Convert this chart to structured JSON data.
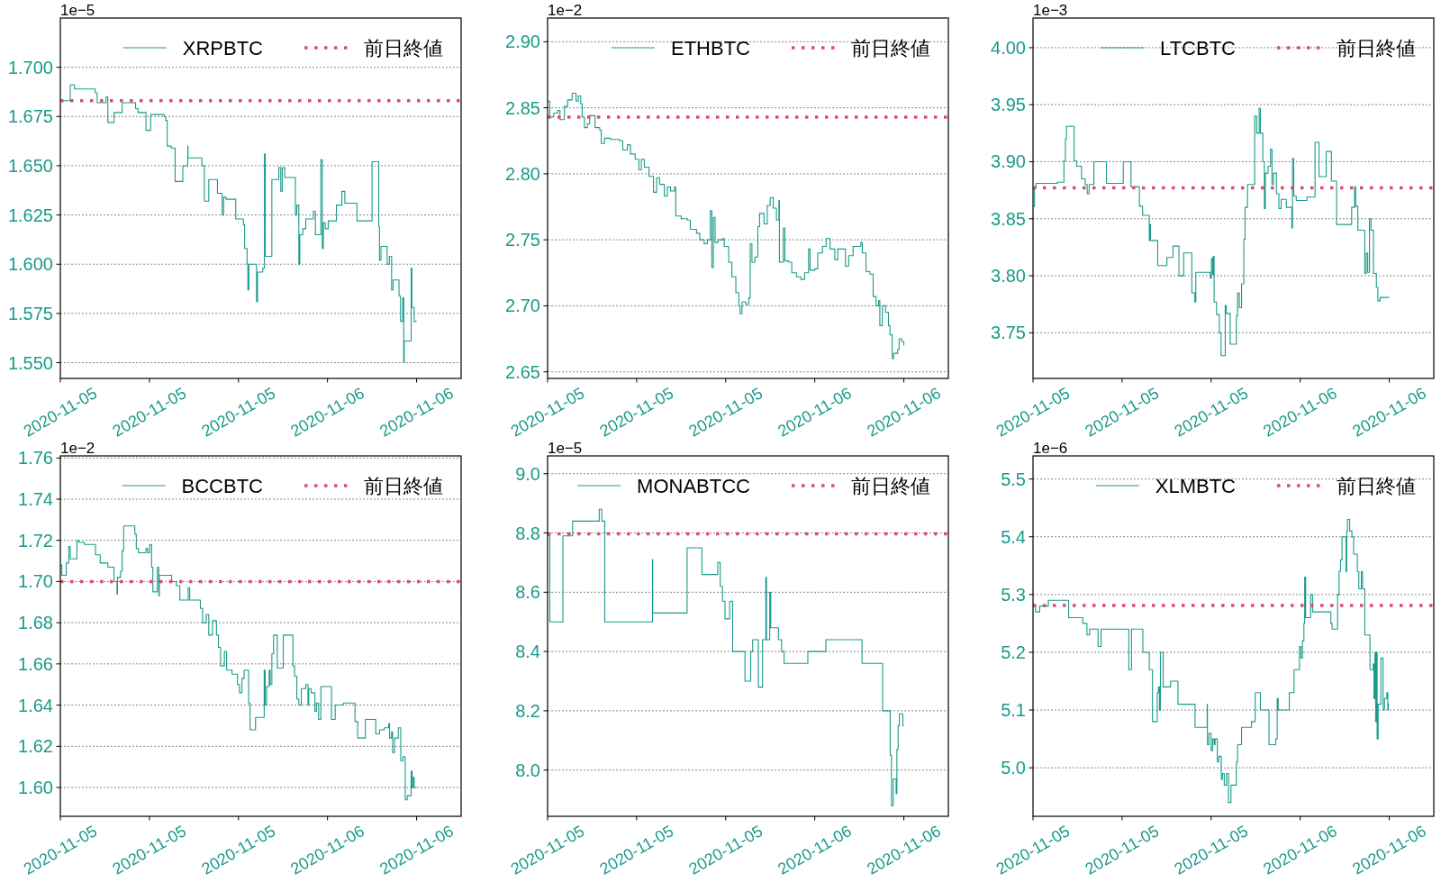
{
  "chart_data": [
    {
      "type": "step",
      "ylabel": "1e−5",
      "xlim": [
        "2020-11-05T09:00",
        "2020-11-06T12:00"
      ],
      "xticks": [
        {
          "value": "2020-11-05T09:00",
          "label": "2020-11-05"
        },
        {
          "value": "2020-11-05T15:00",
          "label": "2020-11-05"
        },
        {
          "value": "2020-11-05T21:00",
          "label": "2020-11-05"
        },
        {
          "value": "2020-11-06T03:00",
          "label": "2020-11-06"
        },
        {
          "value": "2020-11-06T09:00",
          "label": "2020-11-06"
        }
      ],
      "ylim": [
        1.542,
        1.725
      ],
      "yticks": [
        {
          "value": 1.55,
          "label": "1.550"
        },
        {
          "value": 1.575,
          "label": "1.575"
        },
        {
          "value": 1.6,
          "label": "1.600"
        },
        {
          "value": 1.625,
          "label": "1.625"
        },
        {
          "value": 1.65,
          "label": "1.650"
        },
        {
          "value": 1.675,
          "label": "1.675"
        },
        {
          "value": 1.7,
          "label": "1.700"
        }
      ],
      "grid": "y",
      "legend": "top right",
      "series": [
        {
          "name": "XRPBTC",
          "color": "#1a9a8a",
          "x": [
            "2020-11-05T09:00",
            "2020-11-05T09:40",
            "2020-11-05T09:57",
            "2020-11-05T11:21",
            "2020-11-05T11:29",
            "2020-11-05T12:05",
            "2020-11-05T12:12",
            "2020-11-05T12:37",
            "2020-11-05T13:10",
            "2020-11-05T14:04",
            "2020-11-05T14:14",
            "2020-11-05T14:46",
            "2020-11-05T15:05",
            "2020-11-05T16:00",
            "2020-11-05T16:06",
            "2020-11-05T16:12",
            "2020-11-05T16:28",
            "2020-11-05T16:44",
            "2020-11-05T17:15",
            "2020-11-05T17:35",
            "2020-11-05T17:36",
            "2020-11-05T18:32",
            "2020-11-05T18:42",
            "2020-11-05T19:00",
            "2020-11-05T19:35",
            "2020-11-05T19:54",
            "2020-11-05T20:00",
            "2020-11-05T20:10",
            "2020-11-05T20:49",
            "2020-11-05T21:20",
            "2020-11-05T21:25",
            "2020-11-05T21:35",
            "2020-11-05T21:38",
            "2020-11-05T21:42",
            "2020-11-05T22:13",
            "2020-11-05T22:17",
            "2020-11-05T22:38",
            "2020-11-05T22:45",
            "2020-11-05T22:48",
            "2020-11-05T23:15",
            "2020-11-05T23:43",
            "2020-11-05T23:51",
            "2020-11-05T23:57",
            "2020-11-06T00:07",
            "2020-11-06T00:50",
            "2020-11-06T00:56",
            "2020-11-06T01:04",
            "2020-11-06T01:08",
            "2020-11-06T01:20",
            "2020-11-06T01:32",
            "2020-11-06T02:03",
            "2020-11-06T02:11",
            "2020-11-06T02:33",
            "2020-11-06T02:39",
            "2020-11-06T02:43",
            "2020-11-06T02:51",
            "2020-11-06T03:03",
            "2020-11-06T03:36",
            "2020-11-06T03:58",
            "2020-11-06T04:10",
            "2020-11-06T04:59",
            "2020-11-06T06:00",
            "2020-11-06T06:27",
            "2020-11-06T06:30",
            "2020-11-06T06:36",
            "2020-11-06T07:01",
            "2020-11-06T07:10",
            "2020-11-06T07:19",
            "2020-11-06T07:25",
            "2020-11-06T07:49",
            "2020-11-06T07:55",
            "2020-11-06T08:04",
            "2020-11-06T08:08",
            "2020-11-06T08:10",
            "2020-11-06T08:38",
            "2020-11-06T08:41",
            "2020-11-06T08:50",
            "2020-11-06T09:00"
          ],
          "values": [
            1.683,
            1.691,
            1.689,
            1.687,
            1.682,
            1.685,
            1.672,
            1.677,
            1.682,
            1.679,
            1.677,
            1.668,
            1.676,
            1.675,
            1.673,
            1.66,
            1.659,
            1.642,
            1.65,
            1.66,
            1.654,
            1.65,
            1.632,
            1.643,
            1.636,
            1.625,
            1.634,
            1.633,
            1.623,
            1.62,
            1.608,
            1.6,
            1.587,
            1.6,
            1.581,
            1.596,
            1.598,
            1.656,
            1.604,
            1.643,
            1.649,
            1.637,
            1.649,
            1.644,
            1.625,
            1.63,
            1.6,
            1.615,
            1.618,
            1.623,
            1.627,
            1.615,
            1.653,
            1.608,
            1.621,
            1.618,
            1.622,
            1.63,
            1.637,
            1.631,
            1.622,
            1.652,
            1.619,
            1.602,
            1.609,
            1.6,
            1.604,
            1.587,
            1.592,
            1.584,
            1.571,
            1.583,
            1.55,
            1.561,
            1.598,
            1.578,
            1.571,
            1.571
          ]
        }
      ],
      "ref_lines": [
        {
          "axis": "y",
          "value": 1.683,
          "label": "前日終値",
          "color": "#dc4c72",
          "line_style": "dotted"
        }
      ]
    },
    {
      "type": "step",
      "ylabel": "1e−2",
      "xlim": [
        "2020-11-05T09:00",
        "2020-11-06T12:00"
      ],
      "xticks": [
        {
          "value": "2020-11-05T09:00",
          "label": "2020-11-05"
        },
        {
          "value": "2020-11-05T15:00",
          "label": "2020-11-05"
        },
        {
          "value": "2020-11-05T21:00",
          "label": "2020-11-05"
        },
        {
          "value": "2020-11-06T03:00",
          "label": "2020-11-06"
        },
        {
          "value": "2020-11-06T09:00",
          "label": "2020-11-06"
        }
      ],
      "ylim": [
        2.645,
        2.918
      ],
      "yticks": [
        {
          "value": 2.65,
          "label": "2.65"
        },
        {
          "value": 2.7,
          "label": "2.70"
        },
        {
          "value": 2.75,
          "label": "2.75"
        },
        {
          "value": 2.8,
          "label": "2.80"
        },
        {
          "value": 2.85,
          "label": "2.85"
        },
        {
          "value": 2.9,
          "label": "2.90"
        }
      ],
      "grid": "y",
      "legend": "top right",
      "series": [
        {
          "name": "ETHBTC",
          "color": "#1a9a8a",
          "x": [
            "2020-11-05T09:00",
            "2020-11-05T09:09",
            "2020-11-05T09:25",
            "2020-11-05T09:41",
            "2020-11-05T09:50",
            "2020-11-05T10:08",
            "2020-11-05T10:21",
            "2020-11-05T10:39",
            "2020-11-05T10:55",
            "2020-11-05T11:04",
            "2020-11-05T11:14",
            "2020-11-05T11:20",
            "2020-11-05T11:29",
            "2020-11-05T11:41",
            "2020-11-05T11:50",
            "2020-11-05T12:12",
            "2020-11-05T12:31",
            "2020-11-05T12:37",
            "2020-11-05T12:50",
            "2020-11-05T13:14",
            "2020-11-05T13:52",
            "2020-11-05T14:04",
            "2020-11-05T14:23",
            "2020-11-05T14:35",
            "2020-11-05T14:54",
            "2020-11-05T15:09",
            "2020-11-05T15:19",
            "2020-11-05T15:31",
            "2020-11-05T15:50",
            "2020-11-05T16:08",
            "2020-11-05T16:21",
            "2020-11-05T16:33",
            "2020-11-05T16:52",
            "2020-11-05T17:04",
            "2020-11-05T17:17",
            "2020-11-05T17:33",
            "2020-11-05T17:38",
            "2020-11-05T18:00",
            "2020-11-05T18:25",
            "2020-11-05T18:37",
            "2020-11-05T19:02",
            "2020-11-05T19:15",
            "2020-11-05T19:33",
            "2020-11-05T19:46",
            "2020-11-05T19:58",
            "2020-11-05T20:04",
            "2020-11-05T20:10",
            "2020-11-05T20:17",
            "2020-11-05T20:29",
            "2020-11-05T20:48",
            "2020-11-05T20:54",
            "2020-11-05T21:12",
            "2020-11-05T21:25",
            "2020-11-05T21:41",
            "2020-11-05T21:53",
            "2020-11-05T21:58",
            "2020-11-05T22:06",
            "2020-11-05T22:21",
            "2020-11-05T22:33",
            "2020-11-05T22:39",
            "2020-11-05T22:46",
            "2020-11-05T22:58",
            "2020-11-05T23:10",
            "2020-11-05T23:17",
            "2020-11-05T23:35",
            "2020-11-05T23:48",
            "2020-11-06T00:00",
            "2020-11-06T00:12",
            "2020-11-06T00:25",
            "2020-11-06T00:35",
            "2020-11-06T00:37",
            "2020-11-06T00:53",
            "2020-11-06T00:59",
            "2020-11-06T01:15",
            "2020-11-06T01:27",
            "2020-11-06T01:46",
            "2020-11-06T02:04",
            "2020-11-06T02:19",
            "2020-11-06T02:35",
            "2020-11-06T02:41",
            "2020-11-06T03:00",
            "2020-11-06T03:12",
            "2020-11-06T03:31",
            "2020-11-06T03:46",
            "2020-11-06T04:02",
            "2020-11-06T04:21",
            "2020-11-06T04:33",
            "2020-11-06T05:04",
            "2020-11-06T05:17",
            "2020-11-06T05:35",
            "2020-11-06T06:06",
            "2020-11-06T06:12",
            "2020-11-06T06:27",
            "2020-11-06T06:43",
            "2020-11-06T06:56",
            "2020-11-06T07:08",
            "2020-11-06T07:18",
            "2020-11-06T07:23",
            "2020-11-06T07:33",
            "2020-11-06T07:46",
            "2020-11-06T07:58",
            "2020-11-06T08:04",
            "2020-11-06T08:13",
            "2020-11-06T08:19",
            "2020-11-06T08:35",
            "2020-11-06T08:41",
            "2020-11-06T08:51",
            "2020-11-06T09:00"
          ],
          "values": [
            2.855,
            2.843,
            2.846,
            2.848,
            2.841,
            2.851,
            2.856,
            2.861,
            2.855,
            2.859,
            2.853,
            2.843,
            2.835,
            2.838,
            2.844,
            2.835,
            2.833,
            2.823,
            2.827,
            2.826,
            2.825,
            2.818,
            2.822,
            2.815,
            2.811,
            2.803,
            2.811,
            2.805,
            2.798,
            2.786,
            2.797,
            2.792,
            2.783,
            2.79,
            2.787,
            2.79,
            2.768,
            2.766,
            2.765,
            2.758,
            2.755,
            2.75,
            2.747,
            2.75,
            2.772,
            2.729,
            2.767,
            2.748,
            2.75,
            2.751,
            2.745,
            2.733,
            2.722,
            2.71,
            2.7,
            2.694,
            2.703,
            2.701,
            2.706,
            2.747,
            2.733,
            2.737,
            2.76,
            2.77,
            2.762,
            2.776,
            2.782,
            2.774,
            2.765,
            2.78,
            2.733,
            2.759,
            2.734,
            2.733,
            2.725,
            2.722,
            2.72,
            2.725,
            2.743,
            2.727,
            2.728,
            2.74,
            2.745,
            2.751,
            2.743,
            2.735,
            2.743,
            2.73,
            2.738,
            2.745,
            2.748,
            2.74,
            2.726,
            2.724,
            2.707,
            2.7,
            2.704,
            2.685,
            2.7,
            2.695,
            2.685,
            2.678,
            2.66,
            2.664,
            2.667,
            2.675,
            2.673,
            2.67
          ]
        }
      ],
      "ref_lines": [
        {
          "axis": "y",
          "value": 2.843,
          "label": "前日終値",
          "color": "#dc4c72",
          "line_style": "dotted"
        }
      ]
    },
    {
      "type": "step",
      "ylabel": "1e−3",
      "xlim": [
        "2020-11-05T09:00",
        "2020-11-06T12:00"
      ],
      "xticks": [
        {
          "value": "2020-11-05T09:00",
          "label": "2020-11-05"
        },
        {
          "value": "2020-11-05T15:00",
          "label": "2020-11-05"
        },
        {
          "value": "2020-11-05T21:00",
          "label": "2020-11-05"
        },
        {
          "value": "2020-11-06T03:00",
          "label": "2020-11-06"
        },
        {
          "value": "2020-11-06T09:00",
          "label": "2020-11-06"
        }
      ],
      "ylim": [
        3.71,
        4.026
      ],
      "yticks": [
        {
          "value": 3.75,
          "label": "3.75"
        },
        {
          "value": 3.8,
          "label": "3.80"
        },
        {
          "value": 3.85,
          "label": "3.85"
        },
        {
          "value": 3.9,
          "label": "3.90"
        },
        {
          "value": 3.95,
          "label": "3.95"
        },
        {
          "value": 4.0,
          "label": "4.00"
        }
      ],
      "grid": "y",
      "legend": "top right",
      "series": [
        {
          "name": "LTCBTC",
          "color": "#1a9a8a",
          "x": [
            "2020-11-05T09:00",
            "2020-11-05T09:06",
            "2020-11-05T09:12",
            "2020-11-05T10:38",
            "2020-11-05T11:05",
            "2020-11-05T11:11",
            "2020-11-05T11:15",
            "2020-11-05T11:46",
            "2020-11-05T11:56",
            "2020-11-05T12:16",
            "2020-11-05T12:31",
            "2020-11-05T12:39",
            "2020-11-05T12:47",
            "2020-11-05T13:06",
            "2020-11-05T13:57",
            "2020-11-05T15:05",
            "2020-11-05T15:36",
            "2020-11-05T16:10",
            "2020-11-05T16:23",
            "2020-11-05T16:50",
            "2020-11-05T16:52",
            "2020-11-05T16:55",
            "2020-11-05T17:24",
            "2020-11-05T18:01",
            "2020-11-05T18:26",
            "2020-11-05T18:50",
            "2020-11-05T19:09",
            "2020-11-05T19:42",
            "2020-11-05T19:54",
            "2020-11-05T19:58",
            "2020-11-05T20:56",
            "2020-11-05T21:01",
            "2020-11-05T21:06",
            "2020-11-05T21:08",
            "2020-11-05T21:12",
            "2020-11-05T21:22",
            "2020-11-05T21:33",
            "2020-11-05T21:40",
            "2020-11-05T21:57",
            "2020-11-05T22:01",
            "2020-11-05T22:17",
            "2020-11-05T22:42",
            "2020-11-05T22:47",
            "2020-11-05T22:54",
            "2020-11-05T23:03",
            "2020-11-05T23:12",
            "2020-11-05T23:17",
            "2020-11-05T23:27",
            "2020-11-05T23:56",
            "2020-11-06T00:04",
            "2020-11-06T00:14",
            "2020-11-06T00:19",
            "2020-11-06T00:29",
            "2020-11-06T00:35",
            "2020-11-06T00:39",
            "2020-11-06T00:50",
            "2020-11-06T01:00",
            "2020-11-06T01:06",
            "2020-11-06T01:12",
            "2020-11-06T01:24",
            "2020-11-06T01:34",
            "2020-11-06T01:43",
            "2020-11-06T02:04",
            "2020-11-06T02:26",
            "2020-11-06T02:29",
            "2020-11-06T02:34",
            "2020-11-06T02:44",
            "2020-11-06T03:27",
            "2020-11-06T04:00",
            "2020-11-06T04:16",
            "2020-11-06T04:45",
            "2020-11-06T05:06",
            "2020-11-06T05:27",
            "2020-11-06T06:28",
            "2020-11-06T06:40",
            "2020-11-06T06:44",
            "2020-11-06T06:53",
            "2020-11-06T07:21",
            "2020-11-06T07:27",
            "2020-11-06T07:33",
            "2020-11-06T07:40",
            "2020-11-06T07:46",
            "2020-11-06T07:56",
            "2020-11-06T08:08",
            "2020-11-06T08:14",
            "2020-11-06T08:23",
            "2020-11-06T09:00"
          ],
          "values": [
            3.861,
            3.878,
            3.881,
            3.882,
            3.901,
            3.92,
            3.931,
            3.901,
            3.896,
            3.885,
            3.88,
            3.872,
            3.88,
            3.9,
            3.881,
            3.9,
            3.878,
            3.861,
            3.853,
            3.831,
            3.845,
            3.831,
            3.809,
            3.816,
            3.826,
            3.8,
            3.82,
            3.785,
            3.777,
            3.803,
            3.798,
            3.815,
            3.801,
            3.817,
            3.777,
            3.766,
            3.75,
            3.73,
            3.774,
            3.767,
            3.74,
            3.765,
            3.785,
            3.772,
            3.793,
            3.832,
            3.86,
            3.88,
            3.94,
            3.925,
            3.947,
            3.925,
            3.9,
            3.859,
            3.89,
            3.896,
            3.911,
            3.88,
            3.89,
            3.872,
            3.859,
            3.867,
            3.86,
            3.842,
            3.903,
            3.87,
            3.866,
            3.869,
            3.917,
            3.887,
            3.909,
            3.883,
            3.845,
            3.86,
            3.878,
            3.861,
            3.84,
            3.802,
            3.82,
            3.803,
            3.85,
            3.84,
            3.802,
            3.79,
            3.778,
            3.781,
            3.781
          ]
        }
      ],
      "ref_lines": [
        {
          "axis": "y",
          "value": 3.877,
          "label": "前日終値",
          "color": "#dc4c72",
          "line_style": "dotted"
        }
      ]
    },
    {
      "type": "step",
      "ylabel": "1e−2",
      "xlim": [
        "2020-11-05T09:00",
        "2020-11-06T12:00"
      ],
      "xticks": [
        {
          "value": "2020-11-05T09:00",
          "label": "2020-11-05"
        },
        {
          "value": "2020-11-05T15:00",
          "label": "2020-11-05"
        },
        {
          "value": "2020-11-05T21:00",
          "label": "2020-11-05"
        },
        {
          "value": "2020-11-06T03:00",
          "label": "2020-11-06"
        },
        {
          "value": "2020-11-06T09:00",
          "label": "2020-11-06"
        }
      ],
      "ylim": [
        1.586,
        1.761
      ],
      "yticks": [
        {
          "value": 1.6,
          "label": "1.60"
        },
        {
          "value": 1.62,
          "label": "1.62"
        },
        {
          "value": 1.64,
          "label": "1.64"
        },
        {
          "value": 1.66,
          "label": "1.66"
        },
        {
          "value": 1.68,
          "label": "1.68"
        },
        {
          "value": 1.7,
          "label": "1.70"
        },
        {
          "value": 1.72,
          "label": "1.72"
        },
        {
          "value": 1.74,
          "label": "1.74"
        },
        {
          "value": 1.76,
          "label": "1.76"
        }
      ],
      "grid": "y",
      "legend": "top right",
      "series": [
        {
          "name": "BCCBTC",
          "color": "#1a9a8a",
          "x": [
            "2020-11-05T09:00",
            "2020-11-05T09:06",
            "2020-11-05T09:24",
            "2020-11-05T09:34",
            "2020-11-05T09:40",
            "2020-11-05T10:07",
            "2020-11-05T10:15",
            "2020-11-05T10:37",
            "2020-11-05T11:22",
            "2020-11-05T11:41",
            "2020-11-05T12:12",
            "2020-11-05T12:37",
            "2020-11-05T12:49",
            "2020-11-05T12:51",
            "2020-11-05T13:03",
            "2020-11-05T13:10",
            "2020-11-05T13:16",
            "2020-11-05T14:01",
            "2020-11-05T14:07",
            "2020-11-05T14:16",
            "2020-11-05T14:46",
            "2020-11-05T14:53",
            "2020-11-05T15:01",
            "2020-11-05T15:09",
            "2020-11-05T15:14",
            "2020-11-05T15:32",
            "2020-11-05T15:38",
            "2020-11-05T15:40",
            "2020-11-05T16:30",
            "2020-11-05T16:49",
            "2020-11-05T17:03",
            "2020-11-05T17:37",
            "2020-11-05T17:43",
            "2020-11-05T18:26",
            "2020-11-05T18:35",
            "2020-11-05T18:50",
            "2020-11-05T19:00",
            "2020-11-05T19:15",
            "2020-11-05T19:31",
            "2020-11-05T19:39",
            "2020-11-05T19:48",
            "2020-11-05T20:03",
            "2020-11-05T20:12",
            "2020-11-05T20:34",
            "2020-11-05T20:56",
            "2020-11-05T21:04",
            "2020-11-05T21:14",
            "2020-11-05T21:23",
            "2020-11-05T21:41",
            "2020-11-05T21:47",
            "2020-11-05T22:09",
            "2020-11-05T22:44",
            "2020-11-05T22:48",
            "2020-11-05T22:54",
            "2020-11-05T23:04",
            "2020-11-05T23:08",
            "2020-11-05T23:15",
            "2020-11-05T23:22",
            "2020-11-05T23:37",
            "2020-11-06T00:01",
            "2020-11-06T00:40",
            "2020-11-06T00:47",
            "2020-11-06T00:56",
            "2020-11-06T01:04",
            "2020-11-06T01:14",
            "2020-11-06T01:32",
            "2020-11-06T01:41",
            "2020-11-06T01:44",
            "2020-11-06T01:54",
            "2020-11-06T02:09",
            "2020-11-06T02:15",
            "2020-11-06T02:24",
            "2020-11-06T02:33",
            "2020-11-06T03:16",
            "2020-11-06T03:31",
            "2020-11-06T04:04",
            "2020-11-06T04:51",
            "2020-11-06T05:02",
            "2020-11-06T05:33",
            "2020-11-06T06:15",
            "2020-11-06T06:30",
            "2020-11-06T06:49",
            "2020-11-06T07:07",
            "2020-11-06T07:11",
            "2020-11-06T07:19",
            "2020-11-06T07:23",
            "2020-11-06T07:31",
            "2020-11-06T07:46",
            "2020-11-06T07:56",
            "2020-11-06T08:05",
            "2020-11-06T08:14",
            "2020-11-06T08:22",
            "2020-11-06T08:38",
            "2020-11-06T08:42",
            "2020-11-06T08:47",
            "2020-11-06T08:50",
            "2020-11-06T09:00"
          ],
          "values": [
            1.708,
            1.703,
            1.709,
            1.717,
            1.711,
            1.72,
            1.719,
            1.718,
            1.713,
            1.709,
            1.707,
            1.7,
            1.694,
            1.702,
            1.705,
            1.715,
            1.727,
            1.723,
            1.716,
            1.714,
            1.716,
            1.714,
            1.718,
            1.707,
            1.695,
            1.707,
            1.693,
            1.703,
            1.7,
            1.698,
            1.691,
            1.697,
            1.691,
            1.687,
            1.68,
            1.684,
            1.674,
            1.681,
            1.674,
            1.668,
            1.659,
            1.666,
            1.657,
            1.655,
            1.65,
            1.646,
            1.653,
            1.657,
            1.641,
            1.628,
            1.634,
            1.657,
            1.64,
            1.649,
            1.657,
            1.65,
            1.665,
            1.674,
            1.658,
            1.674,
            1.659,
            1.654,
            1.643,
            1.64,
            1.648,
            1.65,
            1.64,
            1.648,
            1.646,
            1.637,
            1.641,
            1.633,
            1.649,
            1.633,
            1.64,
            1.641,
            1.632,
            1.624,
            1.633,
            1.626,
            1.628,
            1.629,
            1.631,
            1.624,
            1.627,
            1.617,
            1.624,
            1.629,
            1.613,
            1.615,
            1.594,
            1.596,
            1.608,
            1.6,
            1.605,
            1.6,
            1.6
          ]
        }
      ],
      "ref_lines": [
        {
          "axis": "y",
          "value": 1.7,
          "label": "前日終値",
          "color": "#dc4c72",
          "line_style": "dotted"
        }
      ]
    },
    {
      "type": "step",
      "ylabel": "1e−5",
      "xlim": [
        "2020-11-05T09:00",
        "2020-11-06T12:00"
      ],
      "xticks": [
        {
          "value": "2020-11-05T09:00",
          "label": "2020-11-05"
        },
        {
          "value": "2020-11-05T15:00",
          "label": "2020-11-05"
        },
        {
          "value": "2020-11-05T21:00",
          "label": "2020-11-05"
        },
        {
          "value": "2020-11-06T03:00",
          "label": "2020-11-06"
        },
        {
          "value": "2020-11-06T09:00",
          "label": "2020-11-06"
        }
      ],
      "ylim": [
        7.844,
        9.06
      ],
      "yticks": [
        {
          "value": 8.0,
          "label": "8.0"
        },
        {
          "value": 8.2,
          "label": "8.2"
        },
        {
          "value": 8.4,
          "label": "8.4"
        },
        {
          "value": 8.6,
          "label": "8.6"
        },
        {
          "value": 8.8,
          "label": "8.8"
        },
        {
          "value": 9.0,
          "label": "9.0"
        }
      ],
      "grid": "y",
      "legend": "top right",
      "series": [
        {
          "name": "MONABTCC",
          "color": "#1a9a8a",
          "x": [
            "2020-11-05T09:00",
            "2020-11-05T09:09",
            "2020-11-05T10:02",
            "2020-11-05T10:41",
            "2020-11-05T12:29",
            "2020-11-05T12:39",
            "2020-11-05T12:51",
            "2020-11-05T16:04",
            "2020-11-05T16:05",
            "2020-11-05T18:24",
            "2020-11-05T19:24",
            "2020-11-05T20:28",
            "2020-11-05T20:38",
            "2020-11-05T20:47",
            "2020-11-05T20:57",
            "2020-11-05T21:16",
            "2020-11-05T21:28",
            "2020-11-05T22:18",
            "2020-11-05T22:41",
            "2020-11-05T22:49",
            "2020-11-05T23:12",
            "2020-11-05T23:29",
            "2020-11-05T23:42",
            "2020-11-05T23:45",
            "2020-11-05T23:58",
            "2020-11-06T00:02",
            "2020-11-06T00:33",
            "2020-11-06T00:46",
            "2020-11-06T00:56",
            "2020-11-06T02:32",
            "2020-11-06T03:45",
            "2020-11-06T06:11",
            "2020-11-06T07:34",
            "2020-11-06T08:05",
            "2020-11-06T08:10",
            "2020-11-06T08:17",
            "2020-11-06T08:29",
            "2020-11-06T08:32",
            "2020-11-06T08:37",
            "2020-11-06T08:42",
            "2020-11-06T08:56",
            "2020-11-06T09:00"
          ],
          "values": [
            8.79,
            8.5,
            8.79,
            8.84,
            8.88,
            8.84,
            8.5,
            8.71,
            8.53,
            8.75,
            8.66,
            8.7,
            8.62,
            8.57,
            8.51,
            8.57,
            8.4,
            8.3,
            8.4,
            8.44,
            8.28,
            8.44,
            8.65,
            8.44,
            8.6,
            8.48,
            8.44,
            8.4,
            8.36,
            8.4,
            8.44,
            8.36,
            8.2,
            8.05,
            7.88,
            7.97,
            7.92,
            8.07,
            8.15,
            8.19,
            8.15,
            8.15
          ]
        }
      ],
      "ref_lines": [
        {
          "axis": "y",
          "value": 8.797,
          "label": "前日終値",
          "color": "#dc4c72",
          "line_style": "dotted"
        }
      ]
    },
    {
      "type": "step",
      "ylabel": "1e−6",
      "xlim": [
        "2020-11-05T09:00",
        "2020-11-06T12:00"
      ],
      "xticks": [
        {
          "value": "2020-11-05T09:00",
          "label": "2020-11-05"
        },
        {
          "value": "2020-11-05T15:00",
          "label": "2020-11-05"
        },
        {
          "value": "2020-11-05T21:00",
          "label": "2020-11-05"
        },
        {
          "value": "2020-11-06T03:00",
          "label": "2020-11-06"
        },
        {
          "value": "2020-11-06T09:00",
          "label": "2020-11-06"
        }
      ],
      "ylim": [
        4.916,
        5.54
      ],
      "yticks": [
        {
          "value": 5.0,
          "label": "5.0"
        },
        {
          "value": 5.1,
          "label": "5.1"
        },
        {
          "value": 5.2,
          "label": "5.2"
        },
        {
          "value": 5.3,
          "label": "5.3"
        },
        {
          "value": 5.4,
          "label": "5.4"
        },
        {
          "value": 5.5,
          "label": "5.5"
        }
      ],
      "grid": "y",
      "legend": "top right",
      "series": [
        {
          "name": "XLMBTC",
          "color": "#1a9a8a",
          "x": [
            "2020-11-05T09:00",
            "2020-11-05T09:10",
            "2020-11-05T09:27",
            "2020-11-05T10:02",
            "2020-11-05T11:24",
            "2020-11-05T12:21",
            "2020-11-05T12:38",
            "2020-11-05T12:49",
            "2020-11-05T13:23",
            "2020-11-05T13:35",
            "2020-11-05T15:27",
            "2020-11-05T15:38",
            "2020-11-05T16:24",
            "2020-11-05T16:50",
            "2020-11-05T17:03",
            "2020-11-05T17:22",
            "2020-11-05T17:27",
            "2020-11-05T17:31",
            "2020-11-05T17:35",
            "2020-11-05T17:46",
            "2020-11-05T18:16",
            "2020-11-05T18:46",
            "2020-11-05T19:55",
            "2020-11-05T20:44",
            "2020-11-05T20:45",
            "2020-11-05T20:51",
            "2020-11-05T21:00",
            "2020-11-05T21:06",
            "2020-11-05T21:12",
            "2020-11-05T21:16",
            "2020-11-05T21:25",
            "2020-11-05T21:31",
            "2020-11-05T21:41",
            "2020-11-05T21:46",
            "2020-11-05T21:53",
            "2020-11-05T22:02",
            "2020-11-05T22:10",
            "2020-11-05T22:20",
            "2020-11-05T22:42",
            "2020-11-05T22:47",
            "2020-11-05T23:03",
            "2020-11-05T23:43",
            "2020-11-05T23:58",
            "2020-11-06T00:19",
            "2020-11-06T00:54",
            "2020-11-06T01:21",
            "2020-11-06T01:27",
            "2020-11-06T01:31",
            "2020-11-06T02:16",
            "2020-11-06T02:35",
            "2020-11-06T02:57",
            "2020-11-06T03:03",
            "2020-11-06T03:09",
            "2020-11-06T03:15",
            "2020-11-06T03:18",
            "2020-11-06T03:22",
            "2020-11-06T03:42",
            "2020-11-06T03:50",
            "2020-11-06T05:04",
            "2020-11-06T05:09",
            "2020-11-06T05:31",
            "2020-11-06T05:37",
            "2020-11-06T05:43",
            "2020-11-06T05:49",
            "2020-11-06T06:05",
            "2020-11-06T06:08",
            "2020-11-06T06:11",
            "2020-11-06T06:20",
            "2020-11-06T06:29",
            "2020-11-06T06:36",
            "2020-11-06T06:51",
            "2020-11-06T06:57",
            "2020-11-06T07:07",
            "2020-11-06T07:12",
            "2020-11-06T07:21",
            "2020-11-06T07:42",
            "2020-11-06T07:55",
            "2020-11-06T07:58",
            "2020-11-06T08:02",
            "2020-11-06T08:05",
            "2020-11-06T08:08",
            "2020-11-06T08:11",
            "2020-11-06T08:15",
            "2020-11-06T08:26",
            "2020-11-06T08:35",
            "2020-11-06T08:41",
            "2020-11-06T08:50",
            "2020-11-06T08:54",
            "2020-11-06T08:56",
            "2020-11-06T09:00"
          ],
          "values": [
            5.28,
            5.27,
            5.28,
            5.29,
            5.26,
            5.25,
            5.23,
            5.24,
            5.21,
            5.24,
            5.17,
            5.24,
            5.2,
            5.17,
            5.08,
            5.13,
            5.14,
            5.1,
            5.2,
            5.14,
            5.15,
            5.11,
            5.07,
            5.11,
            5.04,
            5.06,
            5.03,
            5.05,
            5.04,
            5.05,
            5.01,
            5.02,
            4.98,
            4.99,
            4.97,
            4.99,
            4.94,
            4.97,
            5.01,
            5.04,
            5.07,
            5.08,
            5.13,
            5.1,
            5.04,
            5.05,
            5.12,
            5.1,
            5.13,
            5.17,
            5.21,
            5.19,
            5.22,
            5.25,
            5.33,
            5.26,
            5.3,
            5.27,
            5.25,
            5.24,
            5.3,
            5.34,
            5.36,
            5.4,
            5.34,
            5.41,
            5.43,
            5.41,
            5.4,
            5.37,
            5.34,
            5.31,
            5.34,
            5.31,
            5.23,
            5.17,
            5.18,
            5.12,
            5.2,
            5.08,
            5.2,
            5.05,
            5.11,
            5.19,
            5.1,
            5.12,
            5.13,
            5.1,
            5.11,
            5.11
          ]
        }
      ],
      "ref_lines": [
        {
          "axis": "y",
          "value": 5.281,
          "label": "前日終値",
          "color": "#dc4c72",
          "line_style": "dotted"
        }
      ]
    }
  ]
}
